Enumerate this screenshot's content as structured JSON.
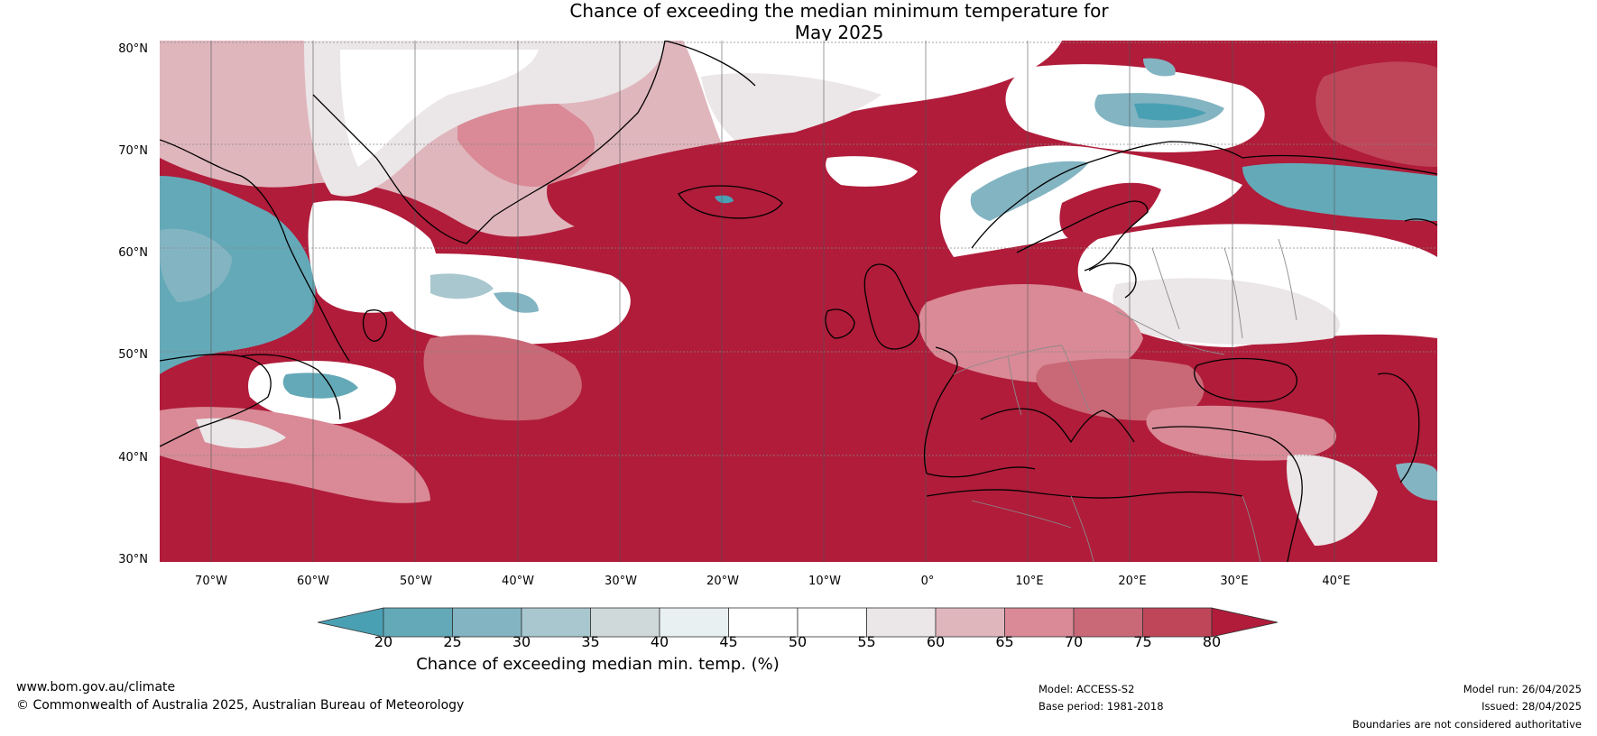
{
  "title": {
    "line1": "Chance of exceeding the median minimum temperature for",
    "line2": "May 2025"
  },
  "map": {
    "region": "North Atlantic and Europe",
    "lat_range_deg": [
      30,
      80
    ],
    "lon_range_deg": [
      -75,
      50
    ],
    "lat_ticks": [
      "80°N",
      "70°N",
      "60°N",
      "50°N",
      "40°N",
      "30°N"
    ],
    "lon_ticks": [
      "70°W",
      "60°W",
      "50°W",
      "40°W",
      "30°W",
      "20°W",
      "10°W",
      "0°",
      "10°E",
      "20°E",
      "30°E",
      "40°E"
    ],
    "coastlines": "black",
    "country_boundaries": "grey",
    "graticule": "dotted grey",
    "dominant_class": "80+ % (dark red) over the central North Atlantic, Western and Southern Europe",
    "low_probability_areas": [
      "Labrador Sea",
      "northern Scandinavia",
      "Barents Sea",
      "north-west Russia"
    ]
  },
  "colorbar": {
    "ticks": [
      "20",
      "25",
      "30",
      "35",
      "40",
      "45",
      "50",
      "55",
      "60",
      "65",
      "70",
      "75",
      "80"
    ],
    "label": "Chance of exceeding median min. temp. (%)",
    "extend": "both",
    "colors": [
      "#4aa0b3",
      "#64a9b8",
      "#83b4c2",
      "#a9c7cf",
      "#cfd9da",
      "#e8f0f1",
      "#ffffff",
      "#ffffff",
      "#ebe6e7",
      "#e0b6bd",
      "#d98a96",
      "#c96877",
      "#bf4659",
      "#b01c3a"
    ]
  },
  "footer": {
    "website": "www.bom.gov.au/climate",
    "copyright": "© Commonwealth of Australia 2025, Australian Bureau of Meteorology",
    "model": "Model: ACCESS-S2",
    "base_period": "Base period: 1981-2018",
    "model_run": "Model run: 26/04/2025",
    "issued": "Issued: 28/04/2025",
    "disclaimer": "Boundaries are not considered authoritative"
  }
}
